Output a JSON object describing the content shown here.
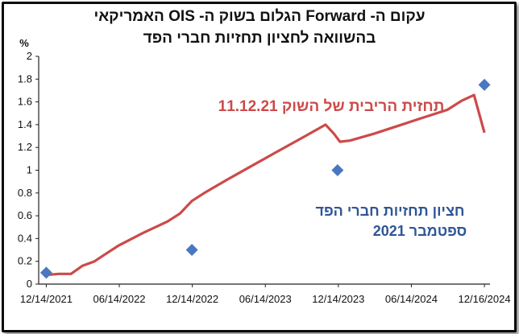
{
  "colors": {
    "line": "#cc4a4a",
    "points": "#4a78c0",
    "axis": "#222222",
    "annotation_line": "#cc4a4a",
    "annotation_points": "#2f5596"
  },
  "chart_data": {
    "type": "line",
    "title_line1": "עקום ה- Forward הגלום בשוק ה- OIS האמריקאי",
    "title_line2": "בהשוואה לחציון תחזיות חברי הפד",
    "ylabel": "%",
    "ylim": [
      0,
      2
    ],
    "yticks": [
      "0",
      "0.2",
      "0.4",
      "0.6",
      "0.8",
      "1",
      "1.2",
      "1.4",
      "1.6",
      "1.8",
      "2"
    ],
    "xticks": [
      "12/14/2021",
      "06/14/2022",
      "12/14/2022",
      "06/14/2023",
      "12/14/2023",
      "06/14/2024",
      "12/16/2024"
    ],
    "grid": false,
    "series": [
      {
        "name": "תחזית הריבית של השוק 11.12.21",
        "kind": "line",
        "x": [
          "2021-12-14",
          "2022-01-14",
          "2022-02-14",
          "2022-03-14",
          "2022-04-14",
          "2022-05-14",
          "2022-06-14",
          "2022-08-14",
          "2022-10-14",
          "2022-11-14",
          "2022-12-14",
          "2023-01-14",
          "2023-03-14",
          "2023-05-14",
          "2023-07-14",
          "2023-09-14",
          "2023-11-14",
          "2023-12-05",
          "2023-12-20",
          "2024-01-14",
          "2024-03-14",
          "2024-05-14",
          "2024-07-14",
          "2024-09-14",
          "2024-10-20",
          "2024-11-20",
          "2024-12-16"
        ],
        "values": [
          0.08,
          0.09,
          0.09,
          0.16,
          0.2,
          0.27,
          0.34,
          0.45,
          0.55,
          0.62,
          0.73,
          0.8,
          0.92,
          1.04,
          1.16,
          1.28,
          1.4,
          1.32,
          1.25,
          1.26,
          1.32,
          1.39,
          1.46,
          1.53,
          1.61,
          1.66,
          1.33
        ]
      },
      {
        "name": "חציון תחזיות חברי הפד ספטמבר 2021",
        "kind": "points",
        "x": [
          "2021-12-14",
          "2022-12-14",
          "2023-12-14",
          "2024-12-16"
        ],
        "values": [
          0.1,
          0.3,
          1.0,
          1.75
        ]
      }
    ],
    "annotations": {
      "line_label": "תחזית הריבית של השוק 11.12.21",
      "points_label_1": "חציון תחזיות חברי הפד",
      "points_label_2": "ספטמבר 2021"
    }
  }
}
